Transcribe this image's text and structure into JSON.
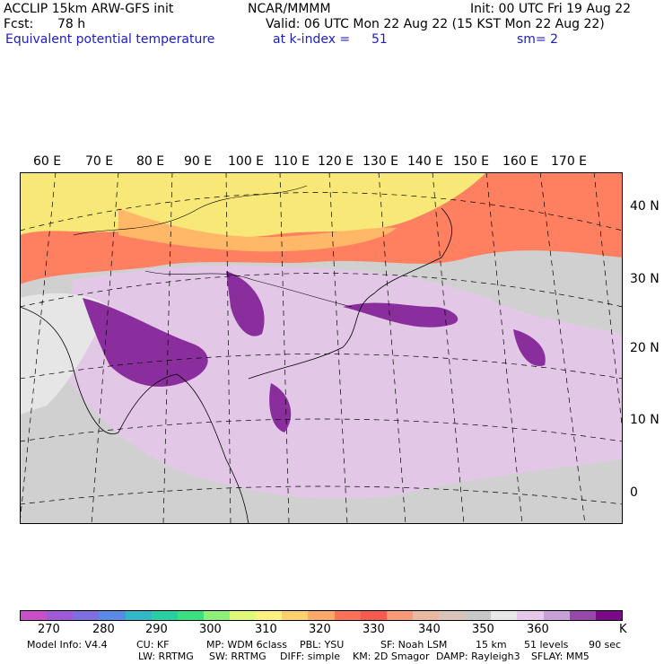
{
  "header": {
    "model_line": "ACCLIP 15km ARW-GFS init",
    "center": "NCAR/MMMM",
    "init": "Init: 00 UTC Fri 19 Aug 22",
    "fcst_label": "Fcst:",
    "fcst_value": "78 h",
    "valid": "Valid: 06 UTC Mon 22 Aug 22 (15 KST Mon 22 Aug 22)",
    "field": "Equivalent potential temperature",
    "level": "at k-index =",
    "level_value": "51",
    "smooth": "sm= 2"
  },
  "map": {
    "lon_labels": [
      "60 E",
      "70 E",
      "80 E",
      "90 E",
      "100 E",
      "110 E",
      "120 E",
      "130 E",
      "140 E",
      "150 E",
      "160 E",
      "170 E"
    ],
    "lat_labels": [
      "40 N",
      "30 N",
      "20 N",
      "10 N",
      "0"
    ]
  },
  "colorbar": {
    "colors": [
      "#c94fc9",
      "#a05ad8",
      "#7d6fe0",
      "#5a8ae8",
      "#2fb8c8",
      "#28cfa0",
      "#38e080",
      "#8cf078",
      "#e0f878",
      "#fff080",
      "#ffd070",
      "#ffa868",
      "#ff7058",
      "#f85a50",
      "#f89a78",
      "#e8b8a0",
      "#d8c4b8",
      "#c8c8c8",
      "#e8e8e8",
      "#e8c8e8",
      "#c8a0d8",
      "#9848a8",
      "#780a88"
    ],
    "ticks": [
      "270",
      "280",
      "290",
      "300",
      "310",
      "320",
      "330",
      "340",
      "350",
      "360"
    ],
    "unit": "K"
  },
  "footer": {
    "row1": [
      "Model Info: V4.4",
      "CU: KF",
      "MP: WDM 6class",
      "PBL: YSU",
      "SF: Noah LSM",
      "15 km",
      "51 levels",
      "90 sec"
    ],
    "row2": [
      "LW: RRTMG",
      "SW: RRTMG",
      "DIFF: simple",
      "KM: 2D Smagor",
      "DAMP: Rayleigh3",
      "SFLAY: MM5"
    ]
  }
}
